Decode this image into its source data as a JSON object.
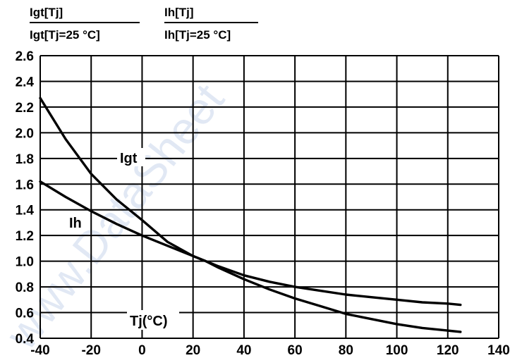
{
  "header": {
    "igt_num": "Igt[Tj]",
    "igt_den": "Igt[Tj=25 °C]",
    "ih_num": "Ih[Tj]",
    "ih_den": "Ih[Tj=25 °C]"
  },
  "watermark": "www.DataSheet",
  "chart_data": {
    "type": "line",
    "title": "",
    "xlabel": "Tj(°C)",
    "ylabel": "",
    "xlim": [
      -40,
      140
    ],
    "ylim": [
      0.4,
      2.6
    ],
    "x_ticks": [
      "-40",
      "-20",
      "0",
      "20",
      "40",
      "60",
      "80",
      "100",
      "120",
      "140"
    ],
    "y_ticks": [
      "2.6",
      "2.4",
      "2.2",
      "2.0",
      "1.8",
      "1.6",
      "1.4",
      "1.2",
      "1.0",
      "0.8",
      "0.6",
      "0.4"
    ],
    "grid": true,
    "series": [
      {
        "name": "Igt",
        "x": [
          -40,
          -30,
          -20,
          -10,
          0,
          10,
          20,
          25,
          30,
          40,
          50,
          60,
          70,
          80,
          90,
          100,
          110,
          120,
          125
        ],
        "y": [
          2.27,
          1.95,
          1.68,
          1.48,
          1.32,
          1.15,
          1.04,
          1.0,
          0.95,
          0.86,
          0.78,
          0.71,
          0.65,
          0.59,
          0.55,
          0.51,
          0.48,
          0.46,
          0.45
        ]
      },
      {
        "name": "Ih",
        "x": [
          -40,
          -30,
          -20,
          -10,
          0,
          10,
          20,
          25,
          30,
          40,
          50,
          60,
          70,
          80,
          90,
          100,
          110,
          120,
          125
        ],
        "y": [
          1.62,
          1.5,
          1.39,
          1.29,
          1.2,
          1.12,
          1.04,
          1.0,
          0.96,
          0.89,
          0.84,
          0.8,
          0.77,
          0.74,
          0.72,
          0.7,
          0.68,
          0.67,
          0.66
        ]
      }
    ]
  }
}
